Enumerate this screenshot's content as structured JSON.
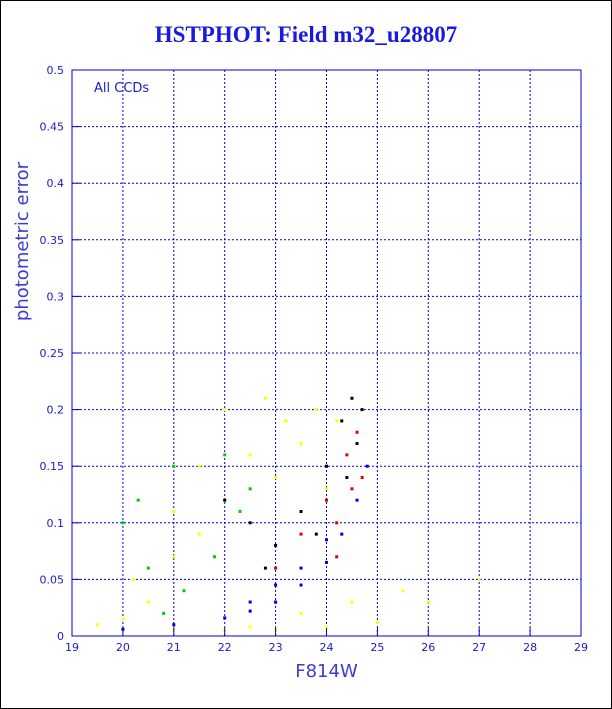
{
  "chart_data": {
    "type": "scatter",
    "title": "HSTPHOT: Field m32_u28807",
    "xlabel": "F814W",
    "ylabel": "photometric error",
    "annotation": "All CCDs",
    "xlim": [
      19,
      29
    ],
    "ylim": [
      0,
      0.5
    ],
    "xticks": [
      19,
      20,
      21,
      22,
      23,
      24,
      25,
      26,
      27,
      28,
      29
    ],
    "yticks": [
      0,
      0.05,
      0.1,
      0.15,
      0.2,
      0.25,
      0.3,
      0.35,
      0.4,
      0.45,
      0.5
    ],
    "grid": true,
    "colors": {
      "axes": "#0000cc",
      "grid": "#0000cc",
      "text": "#1a1acc",
      "title": "#1a1adf",
      "yellow_points": "#ffff00",
      "blue_points": "#0000dd",
      "green_points": "#00cc00",
      "red_points": "#dd0000",
      "black_points": "#000000"
    },
    "series": [
      {
        "color": "yellow",
        "points": [
          [
            19.5,
            0.01
          ],
          [
            20.0,
            0.015
          ],
          [
            20.2,
            0.05
          ],
          [
            20.5,
            0.03
          ],
          [
            21.0,
            0.07
          ],
          [
            21.0,
            0.11
          ],
          [
            21.5,
            0.09
          ],
          [
            21.5,
            0.15
          ],
          [
            22.0,
            0.12
          ],
          [
            22.0,
            0.2
          ],
          [
            22.5,
            0.16
          ],
          [
            22.8,
            0.21
          ],
          [
            23.0,
            0.14
          ],
          [
            23.2,
            0.19
          ],
          [
            23.5,
            0.17
          ],
          [
            23.8,
            0.2
          ],
          [
            24.0,
            0.13
          ],
          [
            24.2,
            0.19
          ],
          [
            20.0,
            0.006
          ],
          [
            21.0,
            0.006
          ],
          [
            22.0,
            0.005
          ],
          [
            23.0,
            0.006
          ],
          [
            24.0,
            0.008
          ],
          [
            25.0,
            0.012
          ],
          [
            26.0,
            0.03
          ],
          [
            27.0,
            0.05
          ],
          [
            22.5,
            0.008
          ],
          [
            23.5,
            0.02
          ],
          [
            24.5,
            0.03
          ],
          [
            25.5,
            0.04
          ]
        ]
      },
      {
        "color": "blue",
        "points": [
          [
            20.0,
            0.006
          ],
          [
            21.0,
            0.01
          ],
          [
            22.0,
            0.016
          ],
          [
            22.5,
            0.022
          ],
          [
            23.0,
            0.03
          ],
          [
            23.5,
            0.045
          ],
          [
            24.0,
            0.065
          ],
          [
            24.3,
            0.09
          ],
          [
            24.6,
            0.12
          ],
          [
            24.8,
            0.15
          ],
          [
            22.5,
            0.03
          ],
          [
            23.0,
            0.045
          ],
          [
            23.5,
            0.06
          ],
          [
            24.0,
            0.085
          ]
        ]
      },
      {
        "color": "green",
        "points": [
          [
            20.0,
            0.1
          ],
          [
            20.3,
            0.12
          ],
          [
            20.5,
            0.06
          ],
          [
            21.0,
            0.15
          ],
          [
            21.2,
            0.04
          ],
          [
            21.8,
            0.07
          ],
          [
            22.0,
            0.16
          ],
          [
            22.5,
            0.13
          ],
          [
            20.8,
            0.02
          ],
          [
            22.3,
            0.11
          ]
        ]
      },
      {
        "color": "red",
        "points": [
          [
            23.0,
            0.06
          ],
          [
            23.5,
            0.09
          ],
          [
            24.0,
            0.12
          ],
          [
            24.2,
            0.1
          ],
          [
            24.4,
            0.16
          ],
          [
            24.5,
            0.13
          ],
          [
            24.6,
            0.18
          ],
          [
            24.7,
            0.14
          ],
          [
            24.2,
            0.07
          ]
        ]
      },
      {
        "color": "black",
        "points": [
          [
            22.0,
            0.12
          ],
          [
            22.5,
            0.1
          ],
          [
            23.0,
            0.08
          ],
          [
            23.5,
            0.11
          ],
          [
            24.0,
            0.15
          ],
          [
            24.3,
            0.19
          ],
          [
            24.5,
            0.21
          ],
          [
            24.6,
            0.17
          ],
          [
            24.7,
            0.2
          ],
          [
            24.4,
            0.14
          ],
          [
            23.8,
            0.09
          ],
          [
            22.8,
            0.06
          ]
        ]
      }
    ]
  }
}
